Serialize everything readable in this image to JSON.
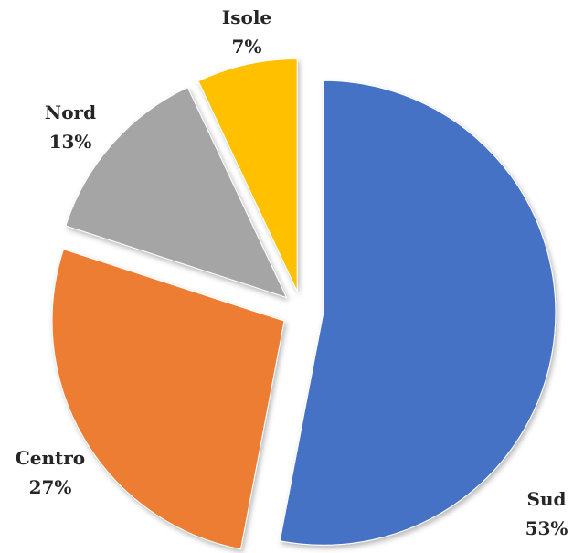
{
  "chart_data": {
    "type": "pie",
    "title": "",
    "categories": [
      "Sud",
      "Centro",
      "Nord",
      "Isole"
    ],
    "values": [
      53,
      27,
      13,
      7
    ],
    "value_labels": [
      "53%",
      "27%",
      "13%",
      "7%"
    ],
    "colors": [
      "#4472C4",
      "#ED7D31",
      "#A5A5A5",
      "#FFC000"
    ],
    "exploded": true,
    "legend": "none",
    "data_labels": "outside"
  }
}
